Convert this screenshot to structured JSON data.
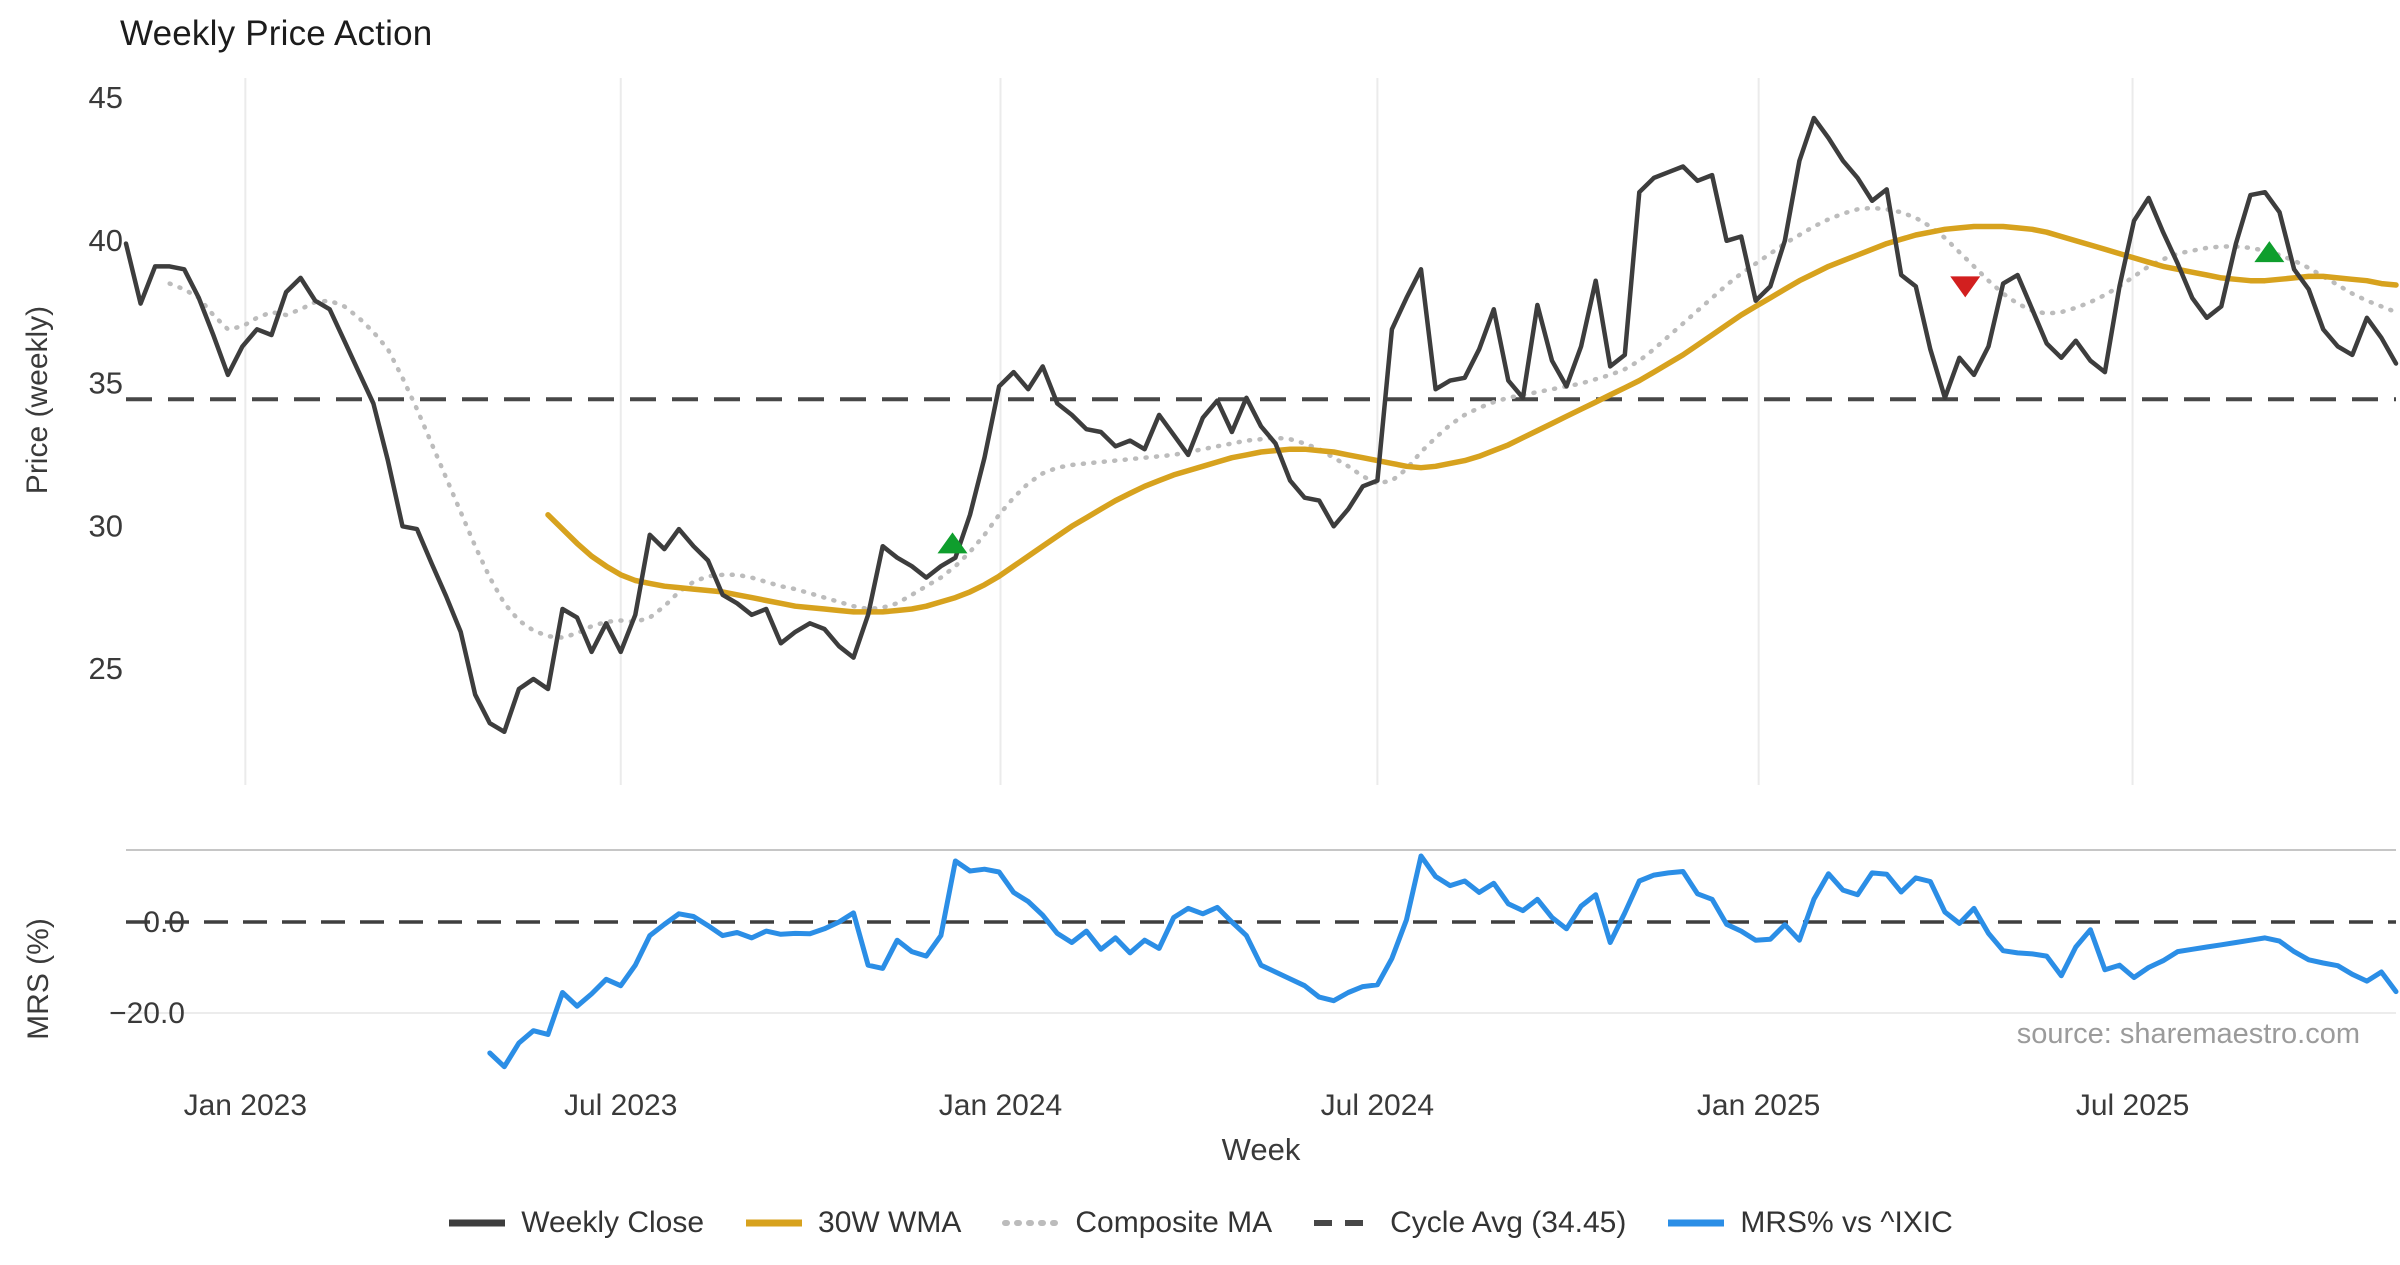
{
  "title": "Weekly Price Action",
  "source_credit": "source: sharemaestro.com",
  "axes": {
    "x_label": "Week",
    "price_y_label": "Price (weekly)",
    "mrs_y_label": "MRS (%)"
  },
  "legend": {
    "items": [
      {
        "label": "Weekly Close",
        "color": "#3d3d3d",
        "style": "solid"
      },
      {
        "label": "30W WMA",
        "color": "#d7a21e",
        "style": "solid"
      },
      {
        "label": "Composite MA",
        "color": "#bcbcbc",
        "style": "dotted"
      },
      {
        "label": "Cycle Avg (34.45)",
        "color": "#474747",
        "style": "dashed"
      },
      {
        "label": "MRS% vs ^IXIC",
        "color": "#2b8ee6",
        "style": "solid"
      }
    ]
  },
  "chart_data": {
    "type": "line",
    "x_unit": "weekly index (Oct 2022 - Nov 2025)",
    "x_ticks": [
      {
        "week": 8.2,
        "label": "Jan 2023"
      },
      {
        "week": 34.0,
        "label": "Jul 2023"
      },
      {
        "week": 60.1,
        "label": "Jan 2024"
      },
      {
        "week": 86.0,
        "label": "Jul 2024"
      },
      {
        "week": 112.2,
        "label": "Jan 2025"
      },
      {
        "week": 137.9,
        "label": "Jul 2025"
      }
    ],
    "price_panel": {
      "ylim": [
        21.8,
        45.7
      ],
      "y_ticks": [
        {
          "value": 45,
          "label": "45"
        },
        {
          "value": 40,
          "label": "40"
        },
        {
          "value": 35,
          "label": "35"
        },
        {
          "value": 30,
          "label": "30"
        },
        {
          "value": 25,
          "label": "25"
        }
      ],
      "cycle_avg": 34.45,
      "series": [
        {
          "name": "Weekly Close",
          "color": "#3d3d3d",
          "style": "solid",
          "width": 4.5,
          "start_week": 0,
          "values": [
            39.9,
            37.8,
            39.1,
            39.1,
            39.0,
            38.0,
            36.7,
            35.3,
            36.3,
            36.9,
            36.7,
            38.2,
            38.7,
            37.9,
            37.6,
            36.5,
            35.4,
            34.3,
            32.3,
            30.0,
            29.9,
            28.7,
            27.55,
            26.3,
            24.1,
            23.1,
            22.8,
            24.3,
            24.65,
            24.3,
            27.1,
            26.8,
            25.6,
            26.6,
            25.6,
            26.9,
            29.7,
            29.2,
            29.9,
            29.3,
            28.8,
            27.6,
            27.3,
            26.9,
            27.1,
            25.9,
            26.3,
            26.6,
            26.4,
            25.8,
            25.4,
            26.9,
            29.3,
            28.9,
            28.6,
            28.2,
            28.6,
            28.9,
            30.4,
            32.4,
            34.9,
            35.4,
            34.8,
            35.6,
            34.3,
            33.9,
            33.4,
            33.3,
            32.8,
            33.0,
            32.7,
            33.9,
            33.2,
            32.5,
            33.8,
            34.4,
            33.3,
            34.5,
            33.5,
            32.9,
            31.6,
            31.0,
            30.9,
            30.0,
            30.6,
            31.4,
            31.6,
            36.9,
            38.0,
            39.0,
            34.8,
            35.1,
            35.2,
            36.2,
            37.6,
            35.1,
            34.5,
            37.75,
            35.8,
            34.9,
            36.3,
            38.6,
            35.6,
            36.0,
            41.7,
            42.2,
            42.4,
            42.6,
            42.1,
            42.3,
            40.0,
            40.15,
            37.9,
            38.4,
            40.0,
            42.8,
            44.3,
            43.6,
            42.8,
            42.2,
            41.4,
            41.8,
            38.8,
            38.4,
            36.2,
            34.5,
            35.9,
            35.3,
            36.3,
            38.5,
            38.8,
            37.6,
            36.4,
            35.9,
            36.5,
            35.8,
            35.4,
            38.4,
            40.7,
            41.5,
            40.3,
            39.2,
            38.0,
            37.3,
            37.7,
            39.9,
            41.6,
            41.7,
            41.0,
            39.0,
            38.3,
            36.9,
            36.3,
            36.0,
            37.3,
            36.6,
            35.7
          ]
        },
        {
          "name": "30W WMA",
          "color": "#d7a21e",
          "style": "solid",
          "width": 5.5,
          "start_week": 29,
          "values": [
            30.4,
            29.9,
            29.4,
            28.95,
            28.6,
            28.3,
            28.1,
            28.0,
            27.9,
            27.85,
            27.8,
            27.75,
            27.7,
            27.6,
            27.5,
            27.4,
            27.3,
            27.2,
            27.15,
            27.1,
            27.05,
            27.0,
            27.0,
            27.0,
            27.05,
            27.1,
            27.2,
            27.35,
            27.5,
            27.7,
            27.95,
            28.25,
            28.6,
            28.95,
            29.3,
            29.65,
            30.0,
            30.3,
            30.6,
            30.9,
            31.15,
            31.4,
            31.6,
            31.8,
            31.95,
            32.1,
            32.25,
            32.4,
            32.5,
            32.6,
            32.65,
            32.7,
            32.7,
            32.65,
            32.6,
            32.5,
            32.4,
            32.3,
            32.2,
            32.1,
            32.05,
            32.1,
            32.2,
            32.3,
            32.45,
            32.65,
            32.85,
            33.1,
            33.35,
            33.6,
            33.85,
            34.1,
            34.35,
            34.6,
            34.85,
            35.1,
            35.4,
            35.7,
            36.0,
            36.35,
            36.7,
            37.05,
            37.4,
            37.7,
            38.0,
            38.3,
            38.6,
            38.85,
            39.1,
            39.3,
            39.5,
            39.7,
            39.9,
            40.05,
            40.2,
            40.3,
            40.4,
            40.45,
            40.5,
            40.5,
            40.5,
            40.45,
            40.4,
            40.3,
            40.15,
            40.0,
            39.85,
            39.7,
            39.55,
            39.4,
            39.25,
            39.1,
            39.0,
            38.9,
            38.8,
            38.7,
            38.65,
            38.6,
            38.6,
            38.65,
            38.7,
            38.75,
            38.75,
            38.7,
            38.65,
            38.6,
            38.5,
            38.45
          ]
        },
        {
          "name": "Composite MA",
          "color": "#bcbcbc",
          "style": "dotted",
          "width": 4.5,
          "start_week": 3,
          "values": [
            38.5,
            38.3,
            38.0,
            37.4,
            36.9,
            37.0,
            37.3,
            37.5,
            37.4,
            37.6,
            37.85,
            37.9,
            37.7,
            37.3,
            36.8,
            36.2,
            35.2,
            34.1,
            32.9,
            31.7,
            30.5,
            29.3,
            28.2,
            27.3,
            26.7,
            26.35,
            26.15,
            26.1,
            26.25,
            26.5,
            26.65,
            26.7,
            26.65,
            26.8,
            27.2,
            27.7,
            28.05,
            28.25,
            28.3,
            28.3,
            28.2,
            28.05,
            27.9,
            27.8,
            27.65,
            27.5,
            27.35,
            27.2,
            27.1,
            27.15,
            27.3,
            27.6,
            27.9,
            28.2,
            28.6,
            29.1,
            29.7,
            30.4,
            31.0,
            31.5,
            31.85,
            32.05,
            32.15,
            32.2,
            32.25,
            32.3,
            32.35,
            32.4,
            32.45,
            32.5,
            32.6,
            32.7,
            32.8,
            32.9,
            33.0,
            33.05,
            33.1,
            33.05,
            32.9,
            32.7,
            32.4,
            32.1,
            31.75,
            31.5,
            31.6,
            32.0,
            32.6,
            33.1,
            33.55,
            33.9,
            34.15,
            34.35,
            34.5,
            34.6,
            34.7,
            34.8,
            34.9,
            35.0,
            35.15,
            35.3,
            35.5,
            35.8,
            36.2,
            36.65,
            37.1,
            37.55,
            38.0,
            38.45,
            38.85,
            39.2,
            39.55,
            39.9,
            40.2,
            40.5,
            40.75,
            40.95,
            41.1,
            41.15,
            41.1,
            41.0,
            40.8,
            40.5,
            40.1,
            39.6,
            39.1,
            38.6,
            38.15,
            37.8,
            37.55,
            37.45,
            37.5,
            37.65,
            37.85,
            38.1,
            38.4,
            38.75,
            39.1,
            39.35,
            39.55,
            39.65,
            39.75,
            39.8,
            39.8,
            39.75,
            39.65,
            39.5,
            39.3,
            39.05,
            38.75,
            38.45,
            38.15,
            37.9,
            37.7,
            37.5
          ]
        }
      ],
      "markers": {
        "buy": [
          {
            "week": 56.8,
            "value": 29.4
          },
          {
            "week": 147.3,
            "value": 39.6
          }
        ],
        "sell": [
          {
            "week": 126.4,
            "value": 38.4
          }
        ],
        "buy_color": "#0f9e2d",
        "sell_color": "#d21f1f"
      }
    },
    "mrs_panel": {
      "ylim": [
        -32.5,
        15.8
      ],
      "y_ticks": [
        {
          "value": 0,
          "label": "0.0"
        },
        {
          "value": -20,
          "label": "−20.0"
        }
      ],
      "zero_line": 0,
      "series": [
        {
          "name": "MRS% vs ^IXIC",
          "color": "#2b8ee6",
          "style": "solid",
          "width": 5,
          "start_week": 25,
          "values": [
            -28.8,
            -31.8,
            -26.6,
            -23.9,
            -24.7,
            -15.5,
            -18.5,
            -15.8,
            -12.6,
            -14.0,
            -9.5,
            -3.0,
            -0.5,
            1.8,
            1.2,
            -0.8,
            -3.0,
            -2.3,
            -3.5,
            -2.0,
            -2.7,
            -2.5,
            -2.6,
            -1.5,
            0.0,
            2.0,
            -9.5,
            -10.2,
            -4.0,
            -6.5,
            -7.5,
            -3.0,
            13.4,
            11.2,
            11.6,
            11.0,
            6.5,
            4.5,
            1.5,
            -2.5,
            -4.5,
            -2.0,
            -6.0,
            -3.5,
            -6.8,
            -4.0,
            -5.8,
            1.0,
            3.0,
            1.8,
            3.2,
            0.0,
            -3.0,
            -9.5,
            -11.0,
            -12.5,
            -14.0,
            -16.5,
            -17.3,
            -15.5,
            -14.2,
            -13.8,
            -8.0,
            0.5,
            14.5,
            10.0,
            8.0,
            9.0,
            6.5,
            8.5,
            4.0,
            2.5,
            5.0,
            1.0,
            -1.5,
            3.5,
            6.0,
            -4.5,
            2.0,
            9.0,
            10.3,
            10.8,
            11.1,
            6.2,
            5.0,
            -0.5,
            -2.0,
            -4.0,
            -3.8,
            -0.6,
            -4.0,
            5.0,
            10.6,
            7.0,
            6.0,
            10.8,
            10.5,
            6.6,
            9.7,
            8.9,
            2.2,
            -0.3,
            3.0,
            -2.5,
            -6.3,
            -6.8,
            -7.0,
            -7.5,
            -11.8,
            -5.5,
            -1.7,
            -10.5,
            -9.5,
            -12.2,
            -10.0,
            -8.5,
            -6.5,
            -6.0,
            -5.5,
            -5.0,
            -4.5,
            -4.0,
            -3.5,
            -4.2,
            -6.5,
            -8.3,
            -9.0,
            -9.6,
            -11.5,
            -13.0,
            -11.0,
            -15.3
          ]
        }
      ]
    }
  }
}
